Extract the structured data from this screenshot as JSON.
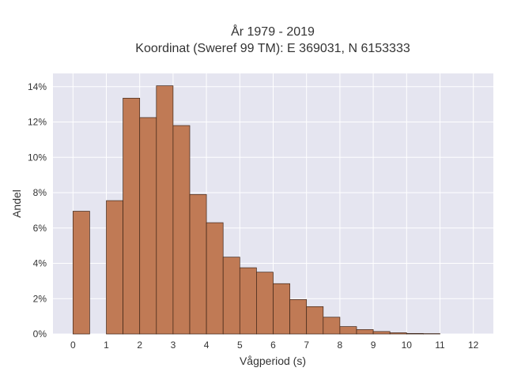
{
  "chart_data": {
    "type": "bar",
    "title_lines": [
      "År 1979 - 2019",
      "Koordinat (Sweref 99 TM): E 369031, N 6153333"
    ],
    "xlabel": "Vågperiod (s)",
    "ylabel": "Andel",
    "x_ticks": [
      0,
      1,
      2,
      3,
      4,
      5,
      6,
      7,
      8,
      9,
      10,
      11,
      12
    ],
    "y_ticks": [
      0,
      0.02,
      0.04,
      0.06,
      0.08,
      0.1,
      0.12,
      0.14
    ],
    "y_tick_labels": [
      "0%",
      "2%",
      "4%",
      "6%",
      "8%",
      "10%",
      "12%",
      "14%"
    ],
    "xlim": [
      -0.6,
      12.6
    ],
    "ylim": [
      0,
      0.1475
    ],
    "bin_width": 0.5,
    "grid": true,
    "bars": [
      {
        "x0": 0.0,
        "value": 0.0695
      },
      {
        "x0": 1.0,
        "value": 0.0755
      },
      {
        "x0": 1.5,
        "value": 0.1335
      },
      {
        "x0": 2.0,
        "value": 0.1225
      },
      {
        "x0": 2.5,
        "value": 0.1405
      },
      {
        "x0": 3.0,
        "value": 0.118
      },
      {
        "x0": 3.5,
        "value": 0.079
      },
      {
        "x0": 4.0,
        "value": 0.063
      },
      {
        "x0": 4.5,
        "value": 0.0435
      },
      {
        "x0": 5.0,
        "value": 0.0375
      },
      {
        "x0": 5.5,
        "value": 0.035
      },
      {
        "x0": 6.0,
        "value": 0.0285
      },
      {
        "x0": 6.5,
        "value": 0.0195
      },
      {
        "x0": 7.0,
        "value": 0.0155
      },
      {
        "x0": 7.5,
        "value": 0.0095
      },
      {
        "x0": 8.0,
        "value": 0.0042
      },
      {
        "x0": 8.5,
        "value": 0.0025
      },
      {
        "x0": 9.0,
        "value": 0.0014
      },
      {
        "x0": 9.5,
        "value": 0.0007
      },
      {
        "x0": 10.0,
        "value": 0.0003
      },
      {
        "x0": 10.5,
        "value": 0.0002
      }
    ],
    "colors": {
      "bar_fill": "#c07a55",
      "bar_edge": "#3d2417",
      "plot_background": "#e5e5f0",
      "grid": "#ffffff"
    }
  }
}
